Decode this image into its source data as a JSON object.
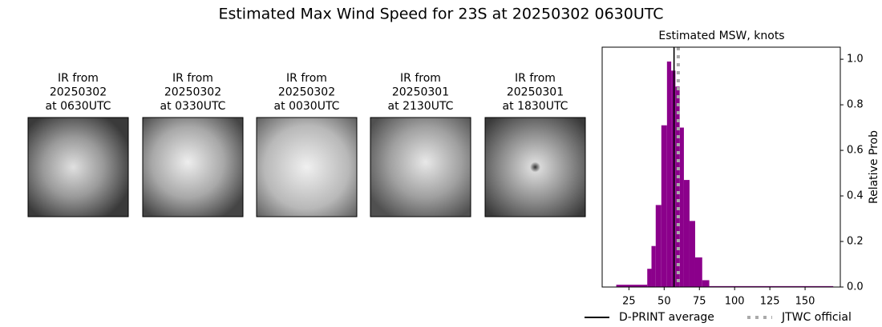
{
  "title": "Estimated Max Wind Speed for 23S at 20250302 0630UTC",
  "panels": [
    {
      "lines": [
        "IR from",
        "20250302",
        "at 0630UTC"
      ]
    },
    {
      "lines": [
        "IR from",
        "20250302",
        "at 0330UTC"
      ]
    },
    {
      "lines": [
        "IR from",
        "20250302",
        "at 0030UTC"
      ]
    },
    {
      "lines": [
        "IR from",
        "20250301",
        "at 2130UTC"
      ]
    },
    {
      "lines": [
        "IR from",
        "20250301",
        "at 1830UTC"
      ]
    }
  ],
  "chart_data": {
    "type": "histogram",
    "title": "Estimated MSW, knots",
    "ylabel": "Relative Prob",
    "color": "#8b008b",
    "bins": [
      16,
      38,
      41,
      44,
      48,
      52,
      55,
      58,
      61,
      64,
      68,
      72,
      77,
      82,
      170
    ],
    "values": [
      0.01,
      0.08,
      0.18,
      0.36,
      0.71,
      0.99,
      0.95,
      0.88,
      0.7,
      0.47,
      0.29,
      0.13,
      0.03,
      0.004
    ],
    "xlim": [
      6,
      175
    ],
    "xticks": [
      25,
      50,
      75,
      100,
      125,
      150
    ],
    "ylim": [
      0,
      1.053
    ],
    "yticks": [
      {
        "value": 0,
        "label": "0.0"
      },
      {
        "value": 0.2,
        "label": "0.2"
      },
      {
        "value": 0.4,
        "label": "0.4"
      },
      {
        "value": 0.6,
        "label": "0.6"
      },
      {
        "value": 0.8,
        "label": "0.8"
      },
      {
        "value": 1,
        "label": "1.0"
      }
    ],
    "vlines": [
      {
        "name": "D-PRINT average",
        "color": "#000000",
        "style": "solid",
        "value": 57
      },
      {
        "name": "JTWC official",
        "color": "#aaaaaa",
        "style": "dotted",
        "value": 60
      }
    ]
  }
}
